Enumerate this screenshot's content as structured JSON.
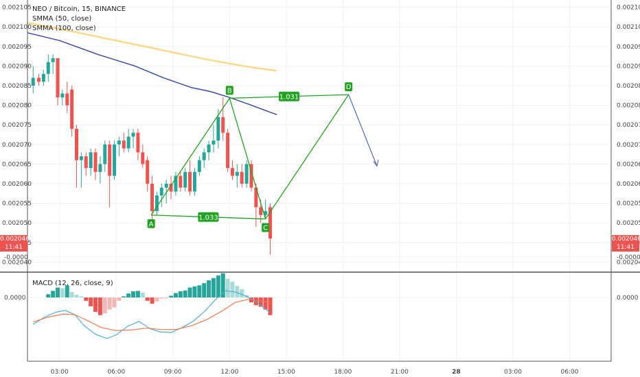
{
  "header": {
    "title": "NEO / Bitcoin, 15, BINANCE",
    "smma50": "SMMA (50, close)",
    "smma100": "SMMA (100, close)"
  },
  "macd": {
    "label": "MACD (12, 26, close, 9)"
  },
  "price_tag": {
    "value": "0.002046",
    "time": "11:41"
  },
  "colors": {
    "up": "#26a69a",
    "down": "#ef5350",
    "pattern": "#21a221",
    "smma50": "#fcd98a",
    "smma100": "#3b4b9e",
    "macd": "#4aaed6",
    "signal": "#f2784b",
    "arrow": "#5d6bb0"
  },
  "chart_data": [
    {
      "type": "candlestick",
      "title": "NEO / Bitcoin, 15, BINANCE",
      "y_ticks": [
        "0.002040",
        "0.002045",
        "0.002050",
        "0.002055",
        "0.002060",
        "0.002065",
        "0.002070",
        "0.002075",
        "0.002080",
        "0.002085",
        "0.002090",
        "0.002095",
        "0.002100",
        "0.002105"
      ],
      "ylim": [
        0.0020378,
        0.0021065
      ],
      "x_ticks": [
        "03:00",
        "06:00",
        "09:00",
        "12:00",
        "15:00",
        "18:00",
        "21:00",
        "28",
        "03:00",
        "06:00"
      ],
      "x_hours": [
        3,
        6,
        9,
        12,
        15,
        18,
        21,
        24,
        27,
        30
      ],
      "xlim": [
        1.3,
        32.2
      ],
      "candles": [
        {
          "t": 1.6,
          "o": 0.002085,
          "h": 0.00209,
          "l": 0.002083,
          "c": 0.002087
        },
        {
          "t": 1.9,
          "o": 0.002087,
          "h": 0.002088,
          "l": 0.002085,
          "c": 0.002086
        },
        {
          "t": 2.15,
          "o": 0.002086,
          "h": 0.002089,
          "l": 0.002085,
          "c": 0.002088
        },
        {
          "t": 2.4,
          "o": 0.002088,
          "h": 0.002093,
          "l": 0.002086,
          "c": 0.002091
        },
        {
          "t": 2.65,
          "o": 0.002091,
          "h": 0.002093,
          "l": 0.002088,
          "c": 0.002092
        },
        {
          "t": 2.9,
          "o": 0.002092,
          "h": 0.002092,
          "l": 0.00208,
          "c": 0.002082
        },
        {
          "t": 3.15,
          "o": 0.002082,
          "h": 0.002084,
          "l": 0.00208,
          "c": 0.002083
        },
        {
          "t": 3.4,
          "o": 0.002083,
          "h": 0.002086,
          "l": 0.002078,
          "c": 0.00208
        },
        {
          "t": 3.65,
          "o": 0.002084,
          "h": 0.002085,
          "l": 0.002072,
          "c": 0.002074
        },
        {
          "t": 3.9,
          "o": 0.002074,
          "h": 0.002075,
          "l": 0.002059,
          "c": 0.002066
        },
        {
          "t": 4.15,
          "o": 0.002066,
          "h": 0.002068,
          "l": 0.002059,
          "c": 0.002067
        },
        {
          "t": 4.4,
          "o": 0.002067,
          "h": 0.002068,
          "l": 0.002062,
          "c": 0.002064
        },
        {
          "t": 4.65,
          "o": 0.002064,
          "h": 0.002069,
          "l": 0.002062,
          "c": 0.002068
        },
        {
          "t": 4.9,
          "o": 0.002068,
          "h": 0.002069,
          "l": 0.002061,
          "c": 0.002063
        },
        {
          "t": 5.15,
          "o": 0.002063,
          "h": 0.002067,
          "l": 0.00206,
          "c": 0.002065
        },
        {
          "t": 5.4,
          "o": 0.002065,
          "h": 0.002071,
          "l": 0.002063,
          "c": 0.00207
        },
        {
          "t": 5.65,
          "o": 0.00207,
          "h": 0.002071,
          "l": 0.002054,
          "c": 0.002062
        },
        {
          "t": 5.9,
          "o": 0.002062,
          "h": 0.002071,
          "l": 0.002061,
          "c": 0.00207
        },
        {
          "t": 6.15,
          "o": 0.00207,
          "h": 0.002072,
          "l": 0.002067,
          "c": 0.002071
        },
        {
          "t": 6.4,
          "o": 0.002071,
          "h": 0.002073,
          "l": 0.002068,
          "c": 0.002069
        },
        {
          "t": 6.65,
          "o": 0.002069,
          "h": 0.002074,
          "l": 0.002068,
          "c": 0.002072
        },
        {
          "t": 6.9,
          "o": 0.002072,
          "h": 0.002074,
          "l": 0.002069,
          "c": 0.002073
        },
        {
          "t": 7.15,
          "o": 0.002073,
          "h": 0.002074,
          "l": 0.002066,
          "c": 0.002068
        },
        {
          "t": 7.4,
          "o": 0.002068,
          "h": 0.00207,
          "l": 0.002064,
          "c": 0.002065
        },
        {
          "t": 7.65,
          "o": 0.002066,
          "h": 0.002067,
          "l": 0.002058,
          "c": 0.00206
        },
        {
          "t": 7.9,
          "o": 0.00206,
          "h": 0.002062,
          "l": 0.002051,
          "c": 0.002053
        },
        {
          "t": 8.15,
          "o": 0.002053,
          "h": 0.002058,
          "l": 0.002052,
          "c": 0.002057
        },
        {
          "t": 8.4,
          "o": 0.002057,
          "h": 0.00206,
          "l": 0.002054,
          "c": 0.002059
        },
        {
          "t": 8.65,
          "o": 0.002059,
          "h": 0.002061,
          "l": 0.002055,
          "c": 0.00206
        },
        {
          "t": 8.9,
          "o": 0.00206,
          "h": 0.002062,
          "l": 0.002056,
          "c": 0.002058
        },
        {
          "t": 9.15,
          "o": 0.002058,
          "h": 0.002063,
          "l": 0.002057,
          "c": 0.002062
        },
        {
          "t": 9.4,
          "o": 0.002062,
          "h": 0.002063,
          "l": 0.002058,
          "c": 0.002059
        },
        {
          "t": 9.65,
          "o": 0.002059,
          "h": 0.002064,
          "l": 0.002058,
          "c": 0.002063
        },
        {
          "t": 9.9,
          "o": 0.002063,
          "h": 0.002066,
          "l": 0.002057,
          "c": 0.002058
        },
        {
          "t": 10.15,
          "o": 0.002058,
          "h": 0.002064,
          "l": 0.002057,
          "c": 0.002063
        },
        {
          "t": 10.4,
          "o": 0.002063,
          "h": 0.002067,
          "l": 0.002062,
          "c": 0.002066
        },
        {
          "t": 10.65,
          "o": 0.002066,
          "h": 0.002069,
          "l": 0.002064,
          "c": 0.002068
        },
        {
          "t": 10.9,
          "o": 0.002068,
          "h": 0.002071,
          "l": 0.002066,
          "c": 0.00207
        },
        {
          "t": 11.15,
          "o": 0.00207,
          "h": 0.002075,
          "l": 0.002068,
          "c": 0.002071
        },
        {
          "t": 11.4,
          "o": 0.002071,
          "h": 0.002079,
          "l": 0.002069,
          "c": 0.002077
        },
        {
          "t": 11.65,
          "o": 0.002077,
          "h": 0.002082,
          "l": 0.002071,
          "c": 0.002073
        },
        {
          "t": 11.9,
          "o": 0.002073,
          "h": 0.002074,
          "l": 0.002063,
          "c": 0.002064
        },
        {
          "t": 12.15,
          "o": 0.002064,
          "h": 0.002066,
          "l": 0.002061,
          "c": 0.002062
        },
        {
          "t": 12.4,
          "o": 0.002062,
          "h": 0.002065,
          "l": 0.002059,
          "c": 0.002063
        },
        {
          "t": 12.65,
          "o": 0.002063,
          "h": 0.002065,
          "l": 0.002059,
          "c": 0.00206
        },
        {
          "t": 12.9,
          "o": 0.00206,
          "h": 0.002066,
          "l": 0.002059,
          "c": 0.002065
        },
        {
          "t": 13.15,
          "o": 0.002065,
          "h": 0.002066,
          "l": 0.002058,
          "c": 0.002059
        },
        {
          "t": 13.4,
          "o": 0.002059,
          "h": 0.00206,
          "l": 0.002049,
          "c": 0.002054
        },
        {
          "t": 13.65,
          "o": 0.002054,
          "h": 0.002056,
          "l": 0.00205,
          "c": 0.002052
        },
        {
          "t": 13.9,
          "o": 0.002052,
          "h": 0.002056,
          "l": 0.002051,
          "c": 0.002053
        },
        {
          "t": 14.15,
          "o": 0.002054,
          "h": 0.002055,
          "l": 0.002042,
          "c": 0.002046
        }
      ],
      "smma50": [
        {
          "t": 1.3,
          "v": 0.002101
        },
        {
          "t": 3,
          "v": 0.0020995
        },
        {
          "t": 5,
          "v": 0.0020975
        },
        {
          "t": 7,
          "v": 0.0020955
        },
        {
          "t": 9,
          "v": 0.0020935
        },
        {
          "t": 11,
          "v": 0.0020915
        },
        {
          "t": 13,
          "v": 0.0020898
        },
        {
          "t": 14.5,
          "v": 0.0020888
        }
      ],
      "smma100": [
        {
          "t": 1.3,
          "v": 0.0020985
        },
        {
          "t": 3,
          "v": 0.0020965
        },
        {
          "t": 5,
          "v": 0.002093
        },
        {
          "t": 7,
          "v": 0.00209
        },
        {
          "t": 8.5,
          "v": 0.002087
        },
        {
          "t": 10,
          "v": 0.0020845
        },
        {
          "t": 11,
          "v": 0.0020835
        },
        {
          "t": 12,
          "v": 0.002082
        },
        {
          "t": 13,
          "v": 0.0020803
        },
        {
          "t": 14.5,
          "v": 0.0020776
        }
      ],
      "pattern": {
        "points": [
          {
            "name": "A",
            "t": 7.85,
            "v": 0.002052
          },
          {
            "name": "B",
            "t": 12.0,
            "v": 0.0020818
          },
          {
            "name": "C",
            "t": 13.9,
            "v": 0.002051
          },
          {
            "name": "D",
            "t": 18.3,
            "v": 0.0020827
          }
        ],
        "ratios": [
          "1.031",
          "1.033"
        ],
        "projection": {
          "t": 19.8,
          "v": 0.0020645
        }
      }
    },
    {
      "type": "bar",
      "title": "MACD (12, 26, close, 9)",
      "y_ticks": [
        "0.0000",
        "-0.0000"
      ],
      "histogram": [
        {
          "t": 2.4,
          "v": 0.15
        },
        {
          "t": 2.65,
          "v": 0.3
        },
        {
          "t": 2.9,
          "v": 0.45
        },
        {
          "t": 3.15,
          "v": 0.42
        },
        {
          "t": 3.4,
          "v": 0.55
        },
        {
          "t": 3.65,
          "v": 0.25
        },
        {
          "t": 3.9,
          "v": 0.12
        },
        {
          "t": 4.15,
          "v": 0.05
        },
        {
          "t": 4.4,
          "v": -0.15
        },
        {
          "t": 4.65,
          "v": -0.4
        },
        {
          "t": 4.9,
          "v": -0.65
        },
        {
          "t": 5.15,
          "v": -0.8
        },
        {
          "t": 5.4,
          "v": -0.72
        },
        {
          "t": 5.65,
          "v": -0.55
        },
        {
          "t": 5.9,
          "v": -0.45
        },
        {
          "t": 6.15,
          "v": -0.15
        },
        {
          "t": 6.4,
          "v": 0.05
        },
        {
          "t": 6.65,
          "v": 0.18
        },
        {
          "t": 6.9,
          "v": 0.28
        },
        {
          "t": 7.15,
          "v": 0.3
        },
        {
          "t": 7.4,
          "v": 0.22
        },
        {
          "t": 7.65,
          "v": -0.15
        },
        {
          "t": 7.9,
          "v": -0.28
        },
        {
          "t": 8.15,
          "v": -0.18
        },
        {
          "t": 8.4,
          "v": -0.05
        },
        {
          "t": 8.65,
          "v": -0.03
        },
        {
          "t": 8.9,
          "v": 0.08
        },
        {
          "t": 9.15,
          "v": 0.2
        },
        {
          "t": 9.4,
          "v": 0.28
        },
        {
          "t": 9.65,
          "v": 0.32
        },
        {
          "t": 9.9,
          "v": 0.45
        },
        {
          "t": 10.15,
          "v": 0.5
        },
        {
          "t": 10.4,
          "v": 0.55
        },
        {
          "t": 10.65,
          "v": 0.65
        },
        {
          "t": 10.9,
          "v": 0.78
        },
        {
          "t": 11.15,
          "v": 0.88
        },
        {
          "t": 11.4,
          "v": 1.0
        },
        {
          "t": 11.65,
          "v": 1.1
        },
        {
          "t": 11.9,
          "v": 0.85
        },
        {
          "t": 12.15,
          "v": 0.72
        },
        {
          "t": 12.4,
          "v": 0.52
        },
        {
          "t": 12.65,
          "v": 0.38
        },
        {
          "t": 12.9,
          "v": 0.1
        },
        {
          "t": 13.15,
          "v": -0.22
        },
        {
          "t": 13.4,
          "v": -0.35
        },
        {
          "t": 13.65,
          "v": -0.42
        },
        {
          "t": 13.9,
          "v": -0.55
        },
        {
          "t": 14.15,
          "v": -0.8
        }
      ],
      "macd_line": [
        {
          "t": 1.6,
          "v": -2.2
        },
        {
          "t": 2.2,
          "v": -1.6
        },
        {
          "t": 2.8,
          "v": -1.2
        },
        {
          "t": 3.3,
          "v": -1.05
        },
        {
          "t": 3.8,
          "v": -1.4
        },
        {
          "t": 4.3,
          "v": -2.3
        },
        {
          "t": 4.9,
          "v": -3.0
        },
        {
          "t": 5.5,
          "v": -3.35
        },
        {
          "t": 6.0,
          "v": -3.05
        },
        {
          "t": 6.6,
          "v": -2.35
        },
        {
          "t": 7.2,
          "v": -1.95
        },
        {
          "t": 7.8,
          "v": -2.55
        },
        {
          "t": 8.3,
          "v": -2.8
        },
        {
          "t": 8.9,
          "v": -2.85
        },
        {
          "t": 9.5,
          "v": -2.45
        },
        {
          "t": 10.1,
          "v": -1.9
        },
        {
          "t": 10.7,
          "v": -1.1
        },
        {
          "t": 11.3,
          "v": -0.1
        },
        {
          "t": 11.8,
          "v": 0.55
        },
        {
          "t": 12.3,
          "v": 0.45
        },
        {
          "t": 12.9,
          "v": 0.1
        },
        {
          "t": 13.5,
          "v": -0.45
        },
        {
          "t": 14.15,
          "v": -1.25
        }
      ],
      "signal_line": [
        {
          "t": 1.6,
          "v": -2.0
        },
        {
          "t": 2.4,
          "v": -1.6
        },
        {
          "t": 3.2,
          "v": -1.35
        },
        {
          "t": 3.8,
          "v": -1.4
        },
        {
          "t": 4.5,
          "v": -1.9
        },
        {
          "t": 5.2,
          "v": -2.45
        },
        {
          "t": 6.0,
          "v": -2.7
        },
        {
          "t": 6.8,
          "v": -2.65
        },
        {
          "t": 7.6,
          "v": -2.5
        },
        {
          "t": 8.4,
          "v": -2.62
        },
        {
          "t": 9.2,
          "v": -2.6
        },
        {
          "t": 10.0,
          "v": -2.3
        },
        {
          "t": 10.8,
          "v": -1.8
        },
        {
          "t": 11.6,
          "v": -1.1
        },
        {
          "t": 12.3,
          "v": -0.4
        },
        {
          "t": 13.0,
          "v": -0.15
        },
        {
          "t": 13.6,
          "v": -0.25
        },
        {
          "t": 14.15,
          "v": -0.45
        }
      ]
    }
  ]
}
